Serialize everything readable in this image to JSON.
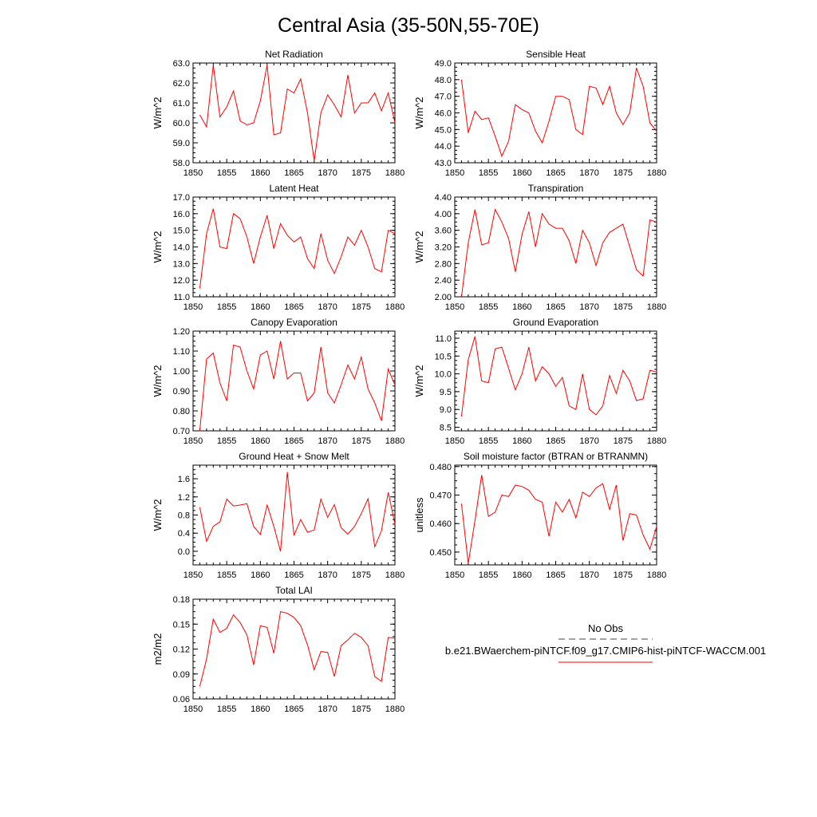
{
  "figure": {
    "title": "Central Asia (35-50N,55-70E)",
    "colors": {
      "model": "#ff0000",
      "obs": "#444444",
      "axis": "#000000"
    }
  },
  "legend": {
    "obs_label": "No Obs",
    "model_label": "b.e21.BWaerchem-piNTCF.f09_g17.CMIP6-hist-piNTCF-WACCM.001"
  },
  "chart_data": [
    {
      "type": "line",
      "title": "Net Radiation",
      "ylabel": "W/m^2",
      "xlim": [
        1850,
        1880
      ],
      "ylim": [
        58.0,
        63.0
      ],
      "xticks": [
        "1850",
        "1855",
        "1860",
        "1865",
        "1870",
        "1875",
        "1880"
      ],
      "yticks": [
        "58.0",
        "59.0",
        "60.0",
        "61.0",
        "62.0",
        "63.0"
      ],
      "x": [
        1851,
        1852,
        1853,
        1854,
        1855,
        1856,
        1857,
        1858,
        1859,
        1860,
        1861,
        1862,
        1863,
        1864,
        1865,
        1866,
        1867,
        1868,
        1869,
        1870,
        1871,
        1872,
        1873,
        1874,
        1875,
        1876,
        1877,
        1878,
        1879,
        1880
      ],
      "series": [
        {
          "values": [
            60.4,
            59.8,
            62.9,
            60.3,
            60.8,
            61.6,
            60.1,
            59.9,
            60.0,
            61.1,
            62.9,
            59.4,
            59.5,
            61.7,
            61.5,
            62.2,
            60.5,
            58.1,
            60.5,
            61.4,
            60.9,
            60.3,
            62.4,
            60.5,
            61.0,
            61.0,
            61.5,
            60.6,
            61.5,
            60.0
          ]
        }
      ]
    },
    {
      "type": "line",
      "title": "Sensible Heat",
      "ylabel": "W/m^2",
      "xlim": [
        1850,
        1880
      ],
      "ylim": [
        43.0,
        49.0
      ],
      "xticks": [
        "1850",
        "1855",
        "1860",
        "1865",
        "1870",
        "1875",
        "1880"
      ],
      "yticks": [
        "43.0",
        "44.0",
        "45.0",
        "46.0",
        "47.0",
        "48.0",
        "49.0"
      ],
      "x": [
        1851,
        1852,
        1853,
        1854,
        1855,
        1856,
        1857,
        1858,
        1859,
        1860,
        1861,
        1862,
        1863,
        1864,
        1865,
        1866,
        1867,
        1868,
        1869,
        1870,
        1871,
        1872,
        1873,
        1874,
        1875,
        1876,
        1877,
        1878,
        1879,
        1880
      ],
      "series": [
        {
          "values": [
            48.0,
            44.8,
            46.1,
            45.6,
            45.7,
            44.6,
            43.4,
            44.3,
            46.5,
            46.2,
            46.0,
            44.9,
            44.2,
            45.5,
            47.0,
            47.0,
            46.8,
            45.0,
            44.7,
            47.6,
            47.5,
            46.5,
            47.6,
            46.0,
            45.3,
            46.0,
            48.7,
            47.6,
            45.4,
            44.9
          ]
        }
      ]
    },
    {
      "type": "line",
      "title": "Latent Heat",
      "ylabel": "W/m^2",
      "xlim": [
        1850,
        1880
      ],
      "ylim": [
        11.0,
        17.0
      ],
      "xticks": [
        "1850",
        "1855",
        "1860",
        "1865",
        "1870",
        "1875",
        "1880"
      ],
      "yticks": [
        "11.0",
        "12.0",
        "13.0",
        "14.0",
        "15.0",
        "16.0",
        "17.0"
      ],
      "x": [
        1851,
        1852,
        1853,
        1854,
        1855,
        1856,
        1857,
        1858,
        1859,
        1860,
        1861,
        1862,
        1863,
        1864,
        1865,
        1866,
        1867,
        1868,
        1869,
        1870,
        1871,
        1872,
        1873,
        1874,
        1875,
        1876,
        1877,
        1878,
        1879,
        1880
      ],
      "series": [
        {
          "values": [
            11.5,
            14.8,
            16.3,
            14.0,
            13.9,
            16.0,
            15.7,
            14.6,
            13.0,
            14.6,
            15.9,
            13.9,
            15.4,
            14.7,
            14.3,
            14.6,
            13.3,
            12.7,
            14.8,
            13.2,
            12.4,
            13.4,
            14.6,
            14.1,
            15.0,
            14.0,
            12.7,
            12.5,
            15.0,
            14.8
          ]
        }
      ]
    },
    {
      "type": "line",
      "title": "Transpiration",
      "ylabel": "W/m^2",
      "xlim": [
        1850,
        1880
      ],
      "ylim": [
        2.0,
        4.4
      ],
      "xticks": [
        "1850",
        "1855",
        "1860",
        "1865",
        "1870",
        "1875",
        "1880"
      ],
      "yticks": [
        "2.00",
        "2.40",
        "2.80",
        "3.20",
        "3.60",
        "4.00",
        "4.40"
      ],
      "x": [
        1851,
        1852,
        1853,
        1854,
        1855,
        1856,
        1857,
        1858,
        1859,
        1860,
        1861,
        1862,
        1863,
        1864,
        1865,
        1866,
        1867,
        1868,
        1869,
        1870,
        1871,
        1872,
        1873,
        1874,
        1875,
        1876,
        1877,
        1878,
        1879,
        1880
      ],
      "series": [
        {
          "values": [
            2.0,
            3.3,
            4.1,
            3.25,
            3.3,
            4.1,
            3.8,
            3.4,
            2.6,
            3.5,
            4.05,
            3.2,
            4.0,
            3.75,
            3.65,
            3.65,
            3.35,
            2.8,
            3.6,
            3.3,
            2.75,
            3.3,
            3.55,
            3.65,
            3.75,
            3.2,
            2.65,
            2.5,
            3.85,
            3.8
          ]
        }
      ]
    },
    {
      "type": "line",
      "title": "Canopy Evaporation",
      "ylabel": "W/m^2",
      "xlim": [
        1850,
        1880
      ],
      "ylim": [
        0.7,
        1.2
      ],
      "xticks": [
        "1850",
        "1855",
        "1860",
        "1865",
        "1870",
        "1875",
        "1880"
      ],
      "yticks": [
        "0.70",
        "0.80",
        "0.90",
        "1.00",
        "1.10",
        "1.20"
      ],
      "x": [
        1851,
        1852,
        1853,
        1854,
        1855,
        1856,
        1857,
        1858,
        1859,
        1860,
        1861,
        1862,
        1863,
        1864,
        1865,
        1866,
        1867,
        1868,
        1869,
        1870,
        1871,
        1872,
        1873,
        1874,
        1875,
        1876,
        1877,
        1878,
        1879,
        1880
      ],
      "series": [
        {
          "values": [
            0.7,
            1.06,
            1.09,
            0.94,
            0.85,
            1.13,
            1.12,
            1.0,
            0.91,
            1.08,
            1.1,
            0.96,
            1.15,
            0.96,
            0.99,
            0.99,
            0.85,
            0.89,
            1.12,
            0.89,
            0.84,
            0.93,
            1.03,
            0.96,
            1.07,
            0.91,
            0.84,
            0.75,
            1.01,
            0.93
          ]
        }
      ]
    },
    {
      "type": "line",
      "title": "Ground Evaporation",
      "ylabel": "W/m^2",
      "xlim": [
        1850,
        1880
      ],
      "ylim": [
        8.4,
        11.2
      ],
      "xticks": [
        "1850",
        "1855",
        "1860",
        "1865",
        "1870",
        "1875",
        "1880"
      ],
      "yticks": [
        "8.5",
        "9.0",
        "9.5",
        "10.0",
        "10.5",
        "11.0"
      ],
      "x": [
        1851,
        1852,
        1853,
        1854,
        1855,
        1856,
        1857,
        1858,
        1859,
        1860,
        1861,
        1862,
        1863,
        1864,
        1865,
        1866,
        1867,
        1868,
        1869,
        1870,
        1871,
        1872,
        1873,
        1874,
        1875,
        1876,
        1877,
        1878,
        1879,
        1880
      ],
      "series": [
        {
          "values": [
            8.8,
            10.4,
            11.05,
            9.8,
            9.75,
            10.7,
            10.75,
            10.15,
            9.55,
            10.0,
            10.75,
            9.8,
            10.2,
            10.0,
            9.65,
            9.9,
            9.1,
            9.0,
            10.0,
            9.0,
            8.85,
            9.1,
            9.95,
            9.45,
            10.1,
            9.8,
            9.25,
            9.3,
            10.1,
            10.05
          ]
        }
      ]
    },
    {
      "type": "line",
      "title": "Ground Heat + Snow Melt",
      "ylabel": "W/m^2",
      "xlim": [
        1850,
        1880
      ],
      "ylim": [
        -0.3,
        1.9
      ],
      "xticks": [
        "1850",
        "1855",
        "1860",
        "1865",
        "1870",
        "1875",
        "1880"
      ],
      "yticks": [
        "0.0",
        "0.4",
        "0.8",
        "1.2",
        "1.6"
      ],
      "x": [
        1851,
        1852,
        1853,
        1854,
        1855,
        1856,
        1857,
        1858,
        1859,
        1860,
        1861,
        1862,
        1863,
        1864,
        1865,
        1866,
        1867,
        1868,
        1869,
        1870,
        1871,
        1872,
        1873,
        1874,
        1875,
        1876,
        1877,
        1878,
        1879,
        1880
      ],
      "series": [
        {
          "values": [
            0.97,
            0.22,
            0.55,
            0.65,
            1.15,
            1.0,
            1.02,
            1.05,
            0.55,
            0.37,
            1.02,
            0.55,
            0.0,
            1.75,
            0.35,
            0.7,
            0.42,
            0.47,
            1.15,
            0.75,
            1.03,
            0.52,
            0.38,
            0.55,
            0.83,
            1.16,
            0.1,
            0.45,
            1.3,
            0.6
          ]
        }
      ]
    },
    {
      "type": "line",
      "title": "Soil moisture factor (BTRAN or BTRANMN)",
      "ylabel": "unitless",
      "xlim": [
        1850,
        1880
      ],
      "ylim": [
        0.4455,
        0.4805
      ],
      "xticks": [
        "1850",
        "1855",
        "1860",
        "1865",
        "1870",
        "1875",
        "1880"
      ],
      "yticks": [
        "0.450",
        "0.460",
        "0.470",
        "0.480"
      ],
      "x": [
        1851,
        1852,
        1853,
        1854,
        1855,
        1856,
        1857,
        1858,
        1859,
        1860,
        1861,
        1862,
        1863,
        1864,
        1865,
        1866,
        1867,
        1868,
        1869,
        1870,
        1871,
        1872,
        1873,
        1874,
        1875,
        1876,
        1877,
        1878,
        1879,
        1880
      ],
      "series": [
        {
          "values": [
            0.467,
            0.446,
            0.461,
            0.477,
            0.4625,
            0.464,
            0.47,
            0.4695,
            0.4735,
            0.473,
            0.4717,
            0.4685,
            0.4675,
            0.4555,
            0.4675,
            0.464,
            0.4685,
            0.462,
            0.471,
            0.4695,
            0.4725,
            0.474,
            0.465,
            0.4735,
            0.454,
            0.4635,
            0.463,
            0.456,
            0.451,
            0.459
          ]
        }
      ]
    },
    {
      "type": "line",
      "title": "Total LAI",
      "ylabel": "m2/m2",
      "xlim": [
        1850,
        1880
      ],
      "ylim": [
        0.06,
        0.18
      ],
      "xticks": [
        "1850",
        "1855",
        "1860",
        "1865",
        "1870",
        "1875",
        "1880"
      ],
      "yticks": [
        "0.06",
        "0.09",
        "0.12",
        "0.15",
        "0.18"
      ],
      "x": [
        1851,
        1852,
        1853,
        1854,
        1855,
        1856,
        1857,
        1858,
        1859,
        1860,
        1861,
        1862,
        1863,
        1864,
        1865,
        1866,
        1867,
        1868,
        1869,
        1870,
        1871,
        1872,
        1873,
        1874,
        1875,
        1876,
        1877,
        1878,
        1879,
        1880
      ],
      "series": [
        {
          "values": [
            0.075,
            0.108,
            0.156,
            0.14,
            0.145,
            0.161,
            0.152,
            0.137,
            0.101,
            0.148,
            0.146,
            0.115,
            0.165,
            0.163,
            0.158,
            0.148,
            0.125,
            0.095,
            0.117,
            0.116,
            0.087,
            0.124,
            0.131,
            0.139,
            0.134,
            0.124,
            0.087,
            0.081,
            0.134,
            0.133
          ]
        }
      ]
    }
  ]
}
